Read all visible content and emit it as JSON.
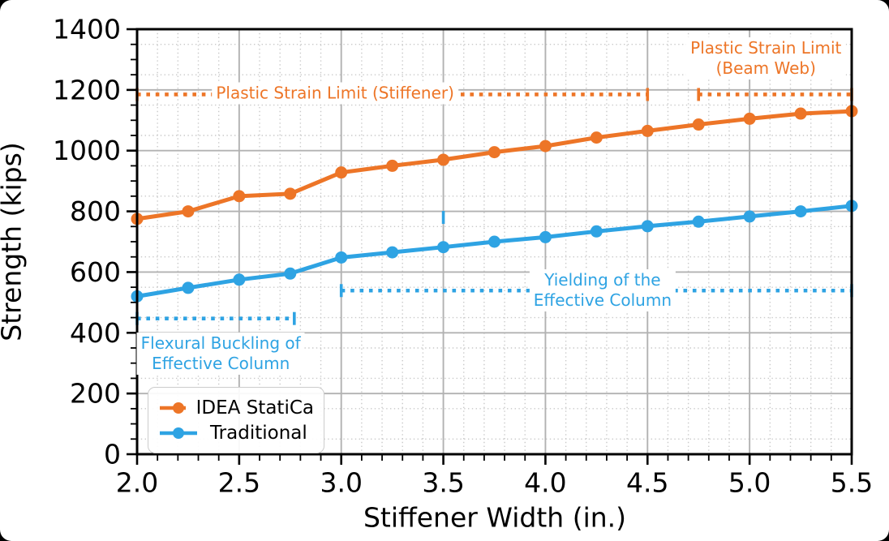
{
  "figure": {
    "background": "#ffffff",
    "frame_color": "#000000",
    "grid_major_color": "#b2b2b2",
    "grid_minor_color": "#c9c9c9",
    "spine_color": "#000000",
    "text_color": "#000000"
  },
  "chart_data": {
    "type": "line",
    "title": "",
    "xlabel": "Stiffener Width (in.)",
    "ylabel": "Strength (kips)",
    "xlim": [
      2.0,
      5.5
    ],
    "ylim": [
      0,
      1400
    ],
    "x_major_ticks": [
      2.0,
      2.5,
      3.0,
      3.5,
      4.0,
      4.5,
      5.0,
      5.5
    ],
    "x_tick_labels": [
      "2.0",
      "2.5",
      "3.0",
      "3.5",
      "4.0",
      "4.5",
      "5.0",
      "5.5"
    ],
    "y_major_ticks": [
      0,
      200,
      400,
      600,
      800,
      1000,
      1200,
      1400
    ],
    "y_tick_labels": [
      "0",
      "200",
      "400",
      "600",
      "800",
      "1000",
      "1200",
      "1400"
    ],
    "x_minor_step": 0.1,
    "y_minor_tick_step": 50,
    "y_minor_grid_values": [
      50,
      150,
      250,
      350,
      450,
      550,
      650,
      750,
      850,
      950,
      1050,
      1150,
      1250,
      1350
    ],
    "grid": "major solid gray, minor dotted light gray",
    "x": [
      2.0,
      2.25,
      2.5,
      2.75,
      3.0,
      3.25,
      3.5,
      3.75,
      4.0,
      4.25,
      4.5,
      4.75,
      5.0,
      5.25,
      5.5
    ],
    "series": [
      {
        "name": "IDEA StatiCa",
        "color": "#ED7527",
        "marker": "circle",
        "values": [
          775,
          800,
          850,
          858,
          928,
          950,
          970,
          995,
          1015,
          1043,
          1065,
          1086,
          1105,
          1122,
          1130
        ]
      },
      {
        "name": "Traditional",
        "color": "#2EA3E3",
        "marker": "circle",
        "values": [
          520,
          548,
          575,
          595,
          648,
          665,
          682,
          700,
          715,
          734,
          751,
          766,
          783,
          800,
          818
        ]
      }
    ],
    "limit_lines": [
      {
        "label": "Plastic Strain Limit (Stiffener)",
        "value": 1185,
        "x_start": 2.0,
        "x_end": 4.5,
        "color": "#ED7527"
      },
      {
        "label": "Plastic Strain Limit (Beam Web)",
        "value": 1185,
        "x_start": 4.75,
        "x_end": 5.5,
        "color": "#ED7527"
      },
      {
        "label": "Flexural Buckling of Effective Column",
        "value": 447,
        "x_start": 2.0,
        "x_end": 2.77,
        "color": "#2EA3E3"
      },
      {
        "label": "Yielding of the Effective Column",
        "value": 539,
        "x_start": 3.0,
        "x_end": 5.5,
        "color": "#2EA3E3"
      }
    ],
    "stray_end_cap": {
      "x": 3.5,
      "value": 780,
      "color": "#2EA3E3"
    },
    "annotations": [
      {
        "lines": [
          "Plastic Strain Limit (Stiffener)",
          ""
        ],
        "color": "#ED7527",
        "anchor_x_in": 2.97,
        "anchor_y_kips": 1188
      },
      {
        "lines": [
          "Plastic Strain Limit",
          "(Beam Web)"
        ],
        "color": "#ED7527",
        "anchor_x_in": 5.08,
        "anchor_y_kips": 1303
      },
      {
        "lines": [
          "Yielding of the",
          "Effective Column"
        ],
        "color": "#2EA3E3",
        "anchor_x_in": 4.28,
        "anchor_y_kips": 540
      },
      {
        "lines": [
          "Flexural Buckling of",
          "Effective Column"
        ],
        "color": "#2EA3E3",
        "anchor_x_in": 2.41,
        "anchor_y_kips": 330
      }
    ],
    "legend": {
      "position": "lower left",
      "items": [
        {
          "label": "IDEA StatiCa"
        },
        {
          "label": "Traditional"
        }
      ]
    }
  }
}
